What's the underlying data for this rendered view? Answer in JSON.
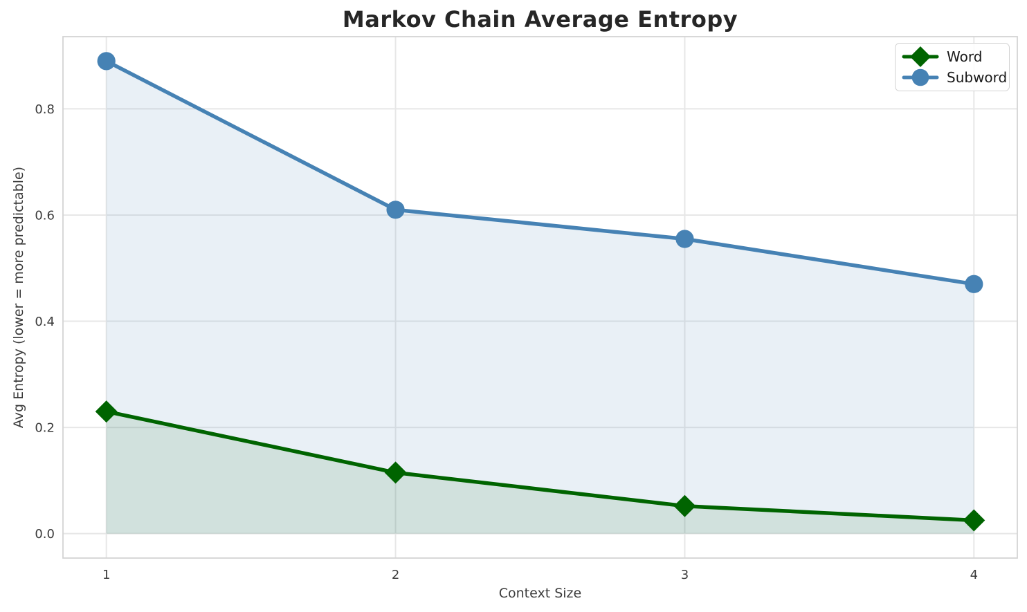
{
  "chart_data": {
    "type": "line",
    "title": "Markov Chain Average Entropy",
    "xlabel": "Context Size",
    "ylabel": "Avg Entropy (lower = more predictable)",
    "x": [
      1,
      2,
      3,
      4
    ],
    "xtick_labels": [
      "1",
      "2",
      "3",
      "4"
    ],
    "ytick_values": [
      0.0,
      0.2,
      0.4,
      0.6,
      0.8
    ],
    "ytick_labels": [
      "0.0",
      "0.2",
      "0.4",
      "0.6",
      "0.8"
    ],
    "xlim": [
      0.85,
      4.15
    ],
    "ylim": [
      -0.046,
      0.936
    ],
    "grid": true,
    "legend_position": "upper right",
    "series": [
      {
        "name": "Word",
        "values": [
          0.23,
          0.115,
          0.052,
          0.025
        ],
        "color": "#006400",
        "marker": "diamond",
        "fill_to_zero": true,
        "fill_color": "rgba(0,100,0,0.10)"
      },
      {
        "name": "Subword",
        "values": [
          0.89,
          0.61,
          0.555,
          0.47
        ],
        "color": "#4682b4",
        "marker": "circle",
        "fill_to_zero": true,
        "fill_color": "rgba(70,130,180,0.12)"
      }
    ],
    "style": {
      "grid_color": "#e7e7e7",
      "spine_color": "#d4d4d4",
      "tick_label_color": "#3b3b3b",
      "title_color": "#262626",
      "line_width": 5.5
    }
  }
}
